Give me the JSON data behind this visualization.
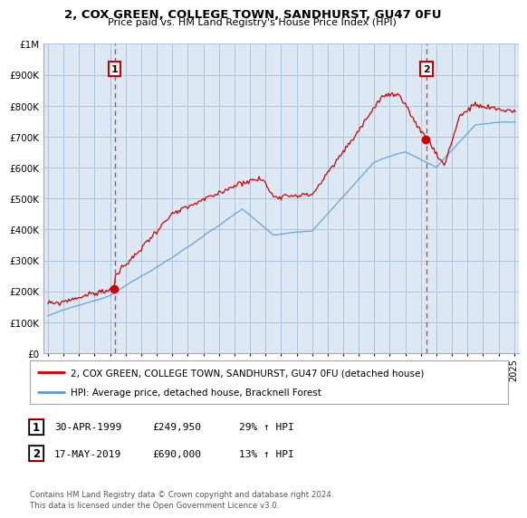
{
  "title": "2, COX GREEN, COLLEGE TOWN, SANDHURST, GU47 0FU",
  "subtitle": "Price paid vs. HM Land Registry's House Price Index (HPI)",
  "background_color": "#ffffff",
  "plot_bg_color": "#dce9f5",
  "grid_color": "#b0c4d8",
  "red_line_color": "#cc0000",
  "blue_line_color": "#5b9bd5",
  "dashed_line_color": "#cc4444",
  "annotation1_year": 1999.29,
  "annotation2_year": 2019.37,
  "annotation1_value": 249950,
  "annotation2_value": 690000,
  "legend_entries": [
    "2, COX GREEN, COLLEGE TOWN, SANDHURST, GU47 0FU (detached house)",
    "HPI: Average price, detached house, Bracknell Forest"
  ],
  "table_rows": [
    [
      "1",
      "30-APR-1999",
      "£249,950",
      "29% ↑ HPI"
    ],
    [
      "2",
      "17-MAY-2019",
      "£690,000",
      "13% ↑ HPI"
    ]
  ],
  "footnote": "Contains HM Land Registry data © Crown copyright and database right 2024.\nThis data is licensed under the Open Government Licence v3.0.",
  "ylim": [
    0,
    1000000
  ],
  "xlim_start": 1994.7,
  "xlim_end": 2025.3
}
